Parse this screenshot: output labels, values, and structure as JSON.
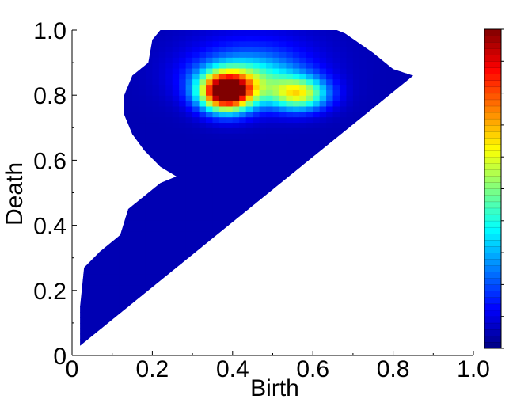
{
  "chart_data": {
    "type": "heatmap",
    "xlabel": "Birth",
    "ylabel": "Death",
    "xlim": [
      0,
      1
    ],
    "ylim": [
      0,
      1
    ],
    "x_ticks": [
      "0",
      "0.2",
      "0.4",
      "0.6",
      "0.8",
      "1.0"
    ],
    "y_ticks": [
      "0",
      "0.2",
      "0.4",
      "0.6",
      "0.8",
      "1.0"
    ],
    "colorbar": {
      "range": [
        0,
        1
      ],
      "colormap": "jet",
      "levels": 50
    },
    "region_outline": [
      [
        0.02,
        0.03
      ],
      [
        0.85,
        0.86
      ],
      [
        0.8,
        0.88
      ],
      [
        0.75,
        0.93
      ],
      [
        0.68,
        0.99
      ],
      [
        0.66,
        1.0
      ],
      [
        0.22,
        1.0
      ],
      [
        0.2,
        0.97
      ],
      [
        0.19,
        0.9
      ],
      [
        0.15,
        0.86
      ],
      [
        0.13,
        0.8
      ],
      [
        0.13,
        0.74
      ],
      [
        0.15,
        0.68
      ],
      [
        0.18,
        0.63
      ],
      [
        0.22,
        0.58
      ],
      [
        0.26,
        0.55
      ],
      [
        0.22,
        0.53
      ],
      [
        0.18,
        0.49
      ],
      [
        0.14,
        0.45
      ],
      [
        0.12,
        0.37
      ],
      [
        0.07,
        0.32
      ],
      [
        0.03,
        0.27
      ],
      [
        0.02,
        0.15
      ],
      [
        0.02,
        0.03
      ]
    ],
    "hotspots": [
      {
        "x": 0.385,
        "y": 0.81,
        "value": 1.0,
        "sx": 0.045,
        "sy": 0.04
      },
      {
        "x": 0.565,
        "y": 0.805,
        "value": 0.5,
        "sx": 0.05,
        "sy": 0.035
      },
      {
        "x": 0.44,
        "y": 0.85,
        "value": 0.3,
        "sx": 0.09,
        "sy": 0.05
      },
      {
        "x": 0.45,
        "y": 0.9,
        "value": 0.1,
        "sx": 0.12,
        "sy": 0.08
      }
    ],
    "background_value": 0.05
  }
}
